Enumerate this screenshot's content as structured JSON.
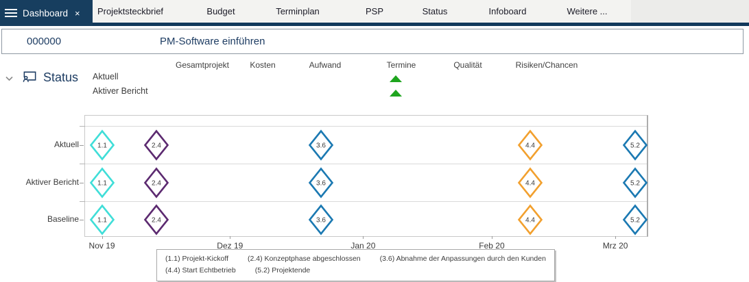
{
  "tabbar": {
    "active_tab": "Dashboard",
    "close_label": "×",
    "tabs": [
      "Projektsteckbrief",
      "Budget",
      "Terminplan",
      "PSP",
      "Status",
      "Infoboard",
      "Weitere ..."
    ]
  },
  "header": {
    "project_id": "000000",
    "project_title": "PM-Software einführen"
  },
  "status_section": {
    "title": "Status",
    "columns": [
      "Gesamtprojekt",
      "Kosten",
      "Aufwand",
      "Termine",
      "Qualität",
      "Risiken/Chancen"
    ],
    "rows": [
      {
        "label": "Aktuell",
        "termine_trend": "up"
      },
      {
        "label": "Aktiver Bericht",
        "termine_trend": "up"
      }
    ],
    "trend_color": "#1ea51e"
  },
  "chart_data": {
    "type": "scatter",
    "subtype": "milestone-timeline",
    "rows": [
      "Aktuell",
      "Aktiver Bericht",
      "Baseline"
    ],
    "x_axis": {
      "ticks": [
        {
          "label": "Nov 19",
          "percent": 3.0
        },
        {
          "label": "Dez 19",
          "percent": 25.8
        },
        {
          "label": "Jan 20",
          "percent": 49.5
        },
        {
          "label": "Feb 20",
          "percent": 72.4
        },
        {
          "label": "Mrz 20",
          "percent": 94.4
        }
      ]
    },
    "milestones": [
      {
        "id": "1.1",
        "name": "Projekt-Kickoff",
        "approx_date": "2019-11-01",
        "percent": 3.0,
        "color": "#40ded8"
      },
      {
        "id": "2.4",
        "name": "Konzeptphase abgeschlossen",
        "approx_date": "2019-11-13",
        "percent": 12.7,
        "color": "#5c2a70"
      },
      {
        "id": "3.6",
        "name": "Abnahme der Anpassungen durch den Kunden",
        "approx_date": "2019-12-22",
        "percent": 42.0,
        "color": "#1b79b2"
      },
      {
        "id": "4.4",
        "name": "Start Echtbetrieb",
        "approx_date": "2020-02-10",
        "percent": 79.3,
        "color": "#f2a02e"
      },
      {
        "id": "5.2",
        "name": "Projektende",
        "approx_date": "2020-03-05",
        "percent": 97.9,
        "color": "#1b79b2"
      }
    ],
    "milestones_present_in_rows": "all",
    "legend": [
      "(1.1) Projekt-Kickoff",
      "(2.4) Konzeptphase abgeschlossen",
      "(3.6) Abnahme der Anpassungen durch den Kunden",
      "(4.4) Start Echtbetrieb",
      "(5.2) Projektende"
    ]
  },
  "colors": {
    "topbar_navy": "#173e5f",
    "navy_text": "#1e3d63",
    "tabstrip_bg": "#f3f3f1",
    "trend_green": "#1ea51e"
  }
}
